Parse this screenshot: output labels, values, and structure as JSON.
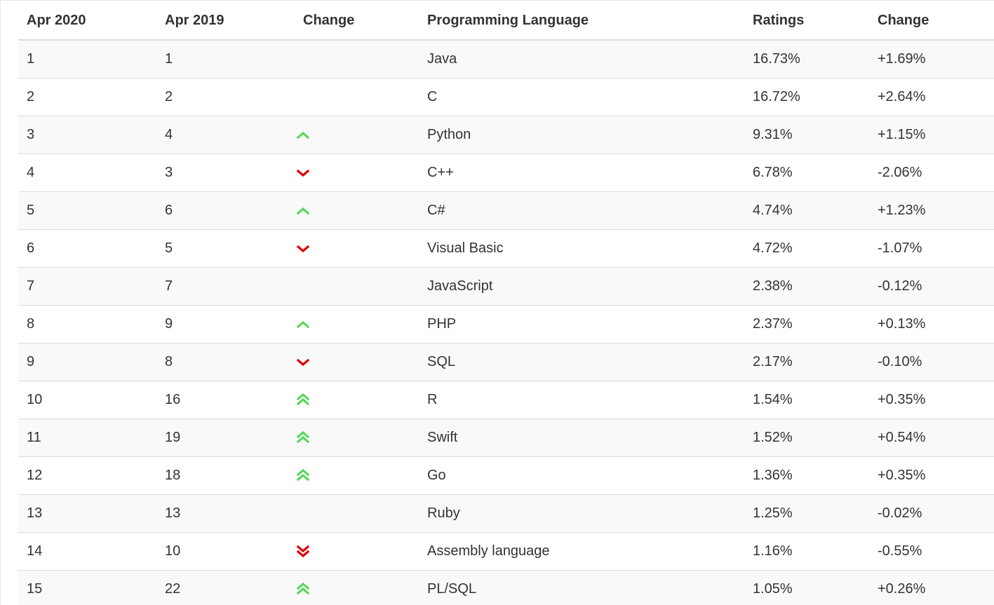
{
  "table": {
    "headers": [
      "Apr 2020",
      "Apr 2019",
      "Change",
      "Programming Language",
      "Ratings",
      "Change"
    ],
    "rows": [
      {
        "rank2020": "1",
        "rank2019": "1",
        "trend": "none",
        "language": "Java",
        "rating": "16.73%",
        "change": "+1.69%"
      },
      {
        "rank2020": "2",
        "rank2019": "2",
        "trend": "none",
        "language": "C",
        "rating": "16.72%",
        "change": "+2.64%"
      },
      {
        "rank2020": "3",
        "rank2019": "4",
        "trend": "up",
        "language": "Python",
        "rating": "9.31%",
        "change": "+1.15%"
      },
      {
        "rank2020": "4",
        "rank2019": "3",
        "trend": "down",
        "language": "C++",
        "rating": "6.78%",
        "change": "-2.06%"
      },
      {
        "rank2020": "5",
        "rank2019": "6",
        "trend": "up",
        "language": "C#",
        "rating": "4.74%",
        "change": "+1.23%"
      },
      {
        "rank2020": "6",
        "rank2019": "5",
        "trend": "down",
        "language": "Visual Basic",
        "rating": "4.72%",
        "change": "-1.07%"
      },
      {
        "rank2020": "7",
        "rank2019": "7",
        "trend": "none",
        "language": "JavaScript",
        "rating": "2.38%",
        "change": "-0.12%"
      },
      {
        "rank2020": "8",
        "rank2019": "9",
        "trend": "up",
        "language": "PHP",
        "rating": "2.37%",
        "change": "+0.13%"
      },
      {
        "rank2020": "9",
        "rank2019": "8",
        "trend": "down",
        "language": "SQL",
        "rating": "2.17%",
        "change": "-0.10%"
      },
      {
        "rank2020": "10",
        "rank2019": "16",
        "trend": "double-up",
        "language": "R",
        "rating": "1.54%",
        "change": "+0.35%"
      },
      {
        "rank2020": "11",
        "rank2019": "19",
        "trend": "double-up",
        "language": "Swift",
        "rating": "1.52%",
        "change": "+0.54%"
      },
      {
        "rank2020": "12",
        "rank2019": "18",
        "trend": "double-up",
        "language": "Go",
        "rating": "1.36%",
        "change": "+0.35%"
      },
      {
        "rank2020": "13",
        "rank2019": "13",
        "trend": "none",
        "language": "Ruby",
        "rating": "1.25%",
        "change": "-0.02%"
      },
      {
        "rank2020": "14",
        "rank2019": "10",
        "trend": "double-down",
        "language": "Assembly language",
        "rating": "1.16%",
        "change": "-0.55%"
      },
      {
        "rank2020": "15",
        "rank2019": "22",
        "trend": "double-up",
        "language": "PL/SQL",
        "rating": "1.05%",
        "change": "+0.26%"
      }
    ]
  },
  "colors": {
    "up": "#5cd65c",
    "down": "#e00000",
    "text": "#333333",
    "row_stripe": "#f9f9f9",
    "border": "#dddddd"
  },
  "icons": {
    "up": "chevron-up-icon",
    "down": "chevron-down-icon",
    "double-up": "double-chevron-up-icon",
    "double-down": "double-chevron-down-icon"
  }
}
